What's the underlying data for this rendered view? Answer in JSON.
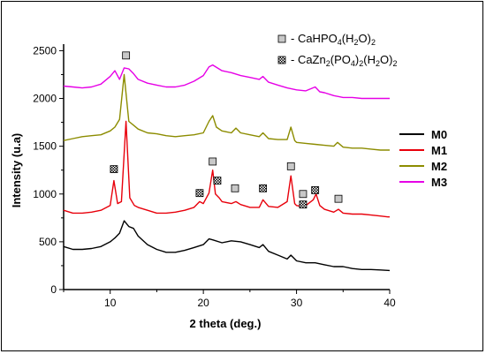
{
  "chart_data": {
    "type": "line",
    "title": "",
    "xlabel": "2 theta (deg.)",
    "ylabel": "Intensity (u.a)",
    "xlim": [
      5,
      40
    ],
    "ylim": [
      0,
      2550
    ],
    "x_ticks": [
      10,
      20,
      30,
      40
    ],
    "y_ticks": [
      0,
      500,
      1000,
      1500,
      2000,
      2500
    ],
    "legend_position": "right",
    "series": [
      {
        "name": "M0",
        "color": "#000000",
        "points": [
          [
            5,
            450
          ],
          [
            6,
            420
          ],
          [
            7,
            420
          ],
          [
            8,
            430
          ],
          [
            9,
            450
          ],
          [
            10,
            500
          ],
          [
            10.5,
            540
          ],
          [
            11,
            590
          ],
          [
            11.5,
            720
          ],
          [
            12,
            660
          ],
          [
            12.5,
            640
          ],
          [
            13,
            560
          ],
          [
            14,
            470
          ],
          [
            15,
            420
          ],
          [
            16,
            390
          ],
          [
            17,
            390
          ],
          [
            18,
            410
          ],
          [
            19,
            440
          ],
          [
            20,
            470
          ],
          [
            20.6,
            530
          ],
          [
            21,
            520
          ],
          [
            22,
            490
          ],
          [
            23,
            510
          ],
          [
            24,
            500
          ],
          [
            25,
            470
          ],
          [
            26,
            440
          ],
          [
            26.4,
            470
          ],
          [
            27,
            400
          ],
          [
            28,
            360
          ],
          [
            29,
            320
          ],
          [
            29.4,
            360
          ],
          [
            30,
            300
          ],
          [
            31,
            280
          ],
          [
            32,
            280
          ],
          [
            33,
            260
          ],
          [
            34,
            240
          ],
          [
            35,
            240
          ],
          [
            36,
            220
          ],
          [
            37,
            210
          ],
          [
            38,
            210
          ],
          [
            39,
            205
          ],
          [
            40,
            200
          ]
        ]
      },
      {
        "name": "M1",
        "color": "#e8000b",
        "points": [
          [
            5,
            830
          ],
          [
            6,
            800
          ],
          [
            7,
            800
          ],
          [
            8,
            810
          ],
          [
            9,
            830
          ],
          [
            10,
            880
          ],
          [
            10.4,
            1140
          ],
          [
            10.8,
            900
          ],
          [
            11.2,
            920
          ],
          [
            11.7,
            1760
          ],
          [
            12.1,
            960
          ],
          [
            12.6,
            880
          ],
          [
            13,
            860
          ],
          [
            14,
            830
          ],
          [
            15,
            800
          ],
          [
            16,
            800
          ],
          [
            17,
            810
          ],
          [
            18,
            830
          ],
          [
            19,
            860
          ],
          [
            19.6,
            920
          ],
          [
            20,
            900
          ],
          [
            20.6,
            1010
          ],
          [
            21,
            1250
          ],
          [
            21.3,
            1000
          ],
          [
            21.7,
            960
          ],
          [
            22,
            920
          ],
          [
            23,
            900
          ],
          [
            23.5,
            920
          ],
          [
            24,
            890
          ],
          [
            25,
            860
          ],
          [
            26,
            860
          ],
          [
            26.4,
            940
          ],
          [
            27,
            870
          ],
          [
            28,
            860
          ],
          [
            29,
            920
          ],
          [
            29.4,
            1190
          ],
          [
            29.8,
            900
          ],
          [
            30,
            880
          ],
          [
            30.5,
            870
          ],
          [
            31,
            880
          ],
          [
            31.8,
            940
          ],
          [
            32.1,
            1000
          ],
          [
            32.5,
            880
          ],
          [
            33,
            840
          ],
          [
            34,
            810
          ],
          [
            34.5,
            840
          ],
          [
            35,
            800
          ],
          [
            36,
            790
          ],
          [
            37,
            790
          ],
          [
            38,
            780
          ],
          [
            39,
            770
          ],
          [
            39.8,
            760
          ],
          [
            40,
            760
          ]
        ]
      },
      {
        "name": "M2",
        "color": "#8c8c00",
        "points": [
          [
            5,
            1560
          ],
          [
            6,
            1580
          ],
          [
            7,
            1600
          ],
          [
            8,
            1610
          ],
          [
            9,
            1620
          ],
          [
            10,
            1660
          ],
          [
            10.5,
            1700
          ],
          [
            11,
            1780
          ],
          [
            11.5,
            2250
          ],
          [
            12,
            1760
          ],
          [
            12.5,
            1720
          ],
          [
            13,
            1680
          ],
          [
            14,
            1640
          ],
          [
            15,
            1630
          ],
          [
            16,
            1610
          ],
          [
            17,
            1600
          ],
          [
            18,
            1610
          ],
          [
            19,
            1620
          ],
          [
            20,
            1640
          ],
          [
            20.6,
            1760
          ],
          [
            21,
            1820
          ],
          [
            21.4,
            1700
          ],
          [
            22,
            1660
          ],
          [
            23,
            1640
          ],
          [
            23.5,
            1690
          ],
          [
            24,
            1640
          ],
          [
            25,
            1620
          ],
          [
            26,
            1600
          ],
          [
            26.4,
            1640
          ],
          [
            27,
            1580
          ],
          [
            28,
            1570
          ],
          [
            29,
            1570
          ],
          [
            29.4,
            1700
          ],
          [
            29.8,
            1560
          ],
          [
            30,
            1540
          ],
          [
            31,
            1530
          ],
          [
            32,
            1520
          ],
          [
            33,
            1510
          ],
          [
            34,
            1500
          ],
          [
            34.4,
            1540
          ],
          [
            35,
            1490
          ],
          [
            36,
            1480
          ],
          [
            37,
            1480
          ],
          [
            38,
            1470
          ],
          [
            39,
            1460
          ],
          [
            40,
            1460
          ]
        ]
      },
      {
        "name": "M3",
        "color": "#e600e6",
        "points": [
          [
            5,
            2130
          ],
          [
            6,
            2120
          ],
          [
            7,
            2110
          ],
          [
            8,
            2120
          ],
          [
            9,
            2150
          ],
          [
            10,
            2230
          ],
          [
            10.5,
            2290
          ],
          [
            11,
            2200
          ],
          [
            11.5,
            2320
          ],
          [
            12,
            2310
          ],
          [
            12.5,
            2260
          ],
          [
            13,
            2200
          ],
          [
            14,
            2160
          ],
          [
            15,
            2140
          ],
          [
            16,
            2120
          ],
          [
            17,
            2120
          ],
          [
            18,
            2140
          ],
          [
            19,
            2180
          ],
          [
            20,
            2240
          ],
          [
            20.6,
            2330
          ],
          [
            21,
            2350
          ],
          [
            22,
            2290
          ],
          [
            23,
            2270
          ],
          [
            24,
            2240
          ],
          [
            25,
            2220
          ],
          [
            26,
            2200
          ],
          [
            26.4,
            2230
          ],
          [
            27,
            2170
          ],
          [
            28,
            2140
          ],
          [
            29,
            2110
          ],
          [
            30,
            2090
          ],
          [
            31,
            2080
          ],
          [
            32,
            2120
          ],
          [
            32.5,
            2070
          ],
          [
            33,
            2060
          ],
          [
            34,
            2030
          ],
          [
            35,
            2010
          ],
          [
            36,
            2010
          ],
          [
            37,
            2000
          ],
          [
            38,
            2000
          ],
          [
            39,
            2000
          ],
          [
            40,
            2000
          ]
        ]
      }
    ],
    "phase_legend": [
      {
        "label_main": "- CaHPO",
        "sub1": "4",
        "mid": "(H",
        "sub2": "2",
        "end": "O)",
        "sub3": "2",
        "marker": "square"
      },
      {
        "label_main": "- CaZn",
        "sub1": "2",
        "mid": "(PO",
        "sub2": "4",
        "mid2": ")",
        "sub3": "2",
        "mid3": "(H",
        "sub4": "2",
        "end": "O)",
        "sub5": "2",
        "marker": "hatched-square"
      }
    ],
    "phase_markers": [
      {
        "x": 11.7,
        "y": 2450,
        "marker": "square"
      },
      {
        "x": 10.4,
        "y": 1260,
        "marker": "hatched-square"
      },
      {
        "x": 19.6,
        "y": 1010,
        "marker": "hatched-square"
      },
      {
        "x": 21.0,
        "y": 1340,
        "marker": "square"
      },
      {
        "x": 21.5,
        "y": 1140,
        "marker": "hatched-square"
      },
      {
        "x": 23.4,
        "y": 1060,
        "marker": "square"
      },
      {
        "x": 26.4,
        "y": 1060,
        "marker": "hatched-square"
      },
      {
        "x": 29.4,
        "y": 1290,
        "marker": "square"
      },
      {
        "x": 30.7,
        "y": 1000,
        "marker": "square"
      },
      {
        "x": 30.7,
        "y": 890,
        "marker": "hatched-square"
      },
      {
        "x": 32.0,
        "y": 1040,
        "marker": "hatched-square"
      },
      {
        "x": 34.5,
        "y": 950,
        "marker": "square"
      }
    ]
  }
}
